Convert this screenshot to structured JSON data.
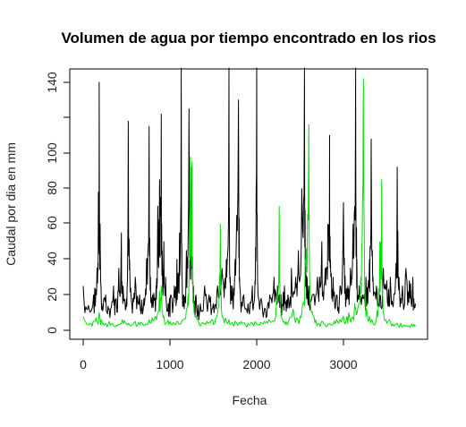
{
  "chart_data": {
    "type": "line",
    "title": "Volumen de agua por tiempo encontrado en los rios",
    "xlabel": "Fecha",
    "ylabel": "Caudal por dia en mm",
    "xlim": [
      0,
      3850
    ],
    "ylim": [
      0,
      145
    ],
    "x_ticks": [
      "0",
      "1000",
      "2000",
      "3000"
    ],
    "y_ticks": [
      "0",
      "20",
      "40",
      "60",
      "80",
      "100",
      "140"
    ],
    "grid": false,
    "legend": "none",
    "series": [
      {
        "color": "#000000",
        "points": [
          [
            0,
            25
          ],
          [
            60,
            14
          ],
          [
            120,
            20
          ],
          [
            160,
            35
          ],
          [
            175,
            78
          ],
          [
            185,
            140
          ],
          [
            195,
            60
          ],
          [
            215,
            15
          ],
          [
            260,
            20
          ],
          [
            300,
            12
          ],
          [
            350,
            25
          ],
          [
            380,
            18
          ],
          [
            410,
            35
          ],
          [
            440,
            55
          ],
          [
            460,
            25
          ],
          [
            500,
            18
          ],
          [
            520,
            118
          ],
          [
            535,
            40
          ],
          [
            560,
            15
          ],
          [
            600,
            30
          ],
          [
            650,
            20
          ],
          [
            700,
            18
          ],
          [
            730,
            40
          ],
          [
            760,
            115
          ],
          [
            775,
            30
          ],
          [
            800,
            20
          ],
          [
            840,
            25
          ],
          [
            860,
            70
          ],
          [
            880,
            85
          ],
          [
            900,
            122
          ],
          [
            910,
            45
          ],
          [
            930,
            50
          ],
          [
            950,
            30
          ],
          [
            980,
            15
          ],
          [
            1010,
            20
          ],
          [
            1050,
            25
          ],
          [
            1080,
            40
          ],
          [
            1110,
            55
          ],
          [
            1130,
            148
          ],
          [
            1140,
            30
          ],
          [
            1160,
            20
          ],
          [
            1190,
            45
          ],
          [
            1220,
            125
          ],
          [
            1235,
            40
          ],
          [
            1250,
            92
          ],
          [
            1270,
            25
          ],
          [
            1300,
            20
          ],
          [
            1350,
            15
          ],
          [
            1400,
            25
          ],
          [
            1450,
            20
          ],
          [
            1500,
            15
          ],
          [
            1550,
            25
          ],
          [
            1600,
            35
          ],
          [
            1650,
            40
          ],
          [
            1680,
            148
          ],
          [
            1695,
            30
          ],
          [
            1720,
            25
          ],
          [
            1750,
            40
          ],
          [
            1790,
            130
          ],
          [
            1805,
            25
          ],
          [
            1850,
            20
          ],
          [
            1900,
            15
          ],
          [
            1950,
            25
          ],
          [
            1980,
            28
          ],
          [
            2000,
            148
          ],
          [
            2015,
            20
          ],
          [
            2050,
            18
          ],
          [
            2100,
            12
          ],
          [
            2150,
            20
          ],
          [
            2200,
            30
          ],
          [
            2240,
            25
          ],
          [
            2280,
            20
          ],
          [
            2320,
            25
          ],
          [
            2360,
            20
          ],
          [
            2400,
            35
          ],
          [
            2450,
            30
          ],
          [
            2480,
            45
          ],
          [
            2520,
            80
          ],
          [
            2550,
            148
          ],
          [
            2565,
            40
          ],
          [
            2580,
            30
          ],
          [
            2600,
            25
          ],
          [
            2640,
            20
          ],
          [
            2700,
            30
          ],
          [
            2750,
            50
          ],
          [
            2790,
            35
          ],
          [
            2820,
            60
          ],
          [
            2840,
            110
          ],
          [
            2850,
            40
          ],
          [
            2880,
            30
          ],
          [
            2920,
            20
          ],
          [
            2960,
            25
          ],
          [
            3000,
            72
          ],
          [
            3020,
            30
          ],
          [
            3050,
            25
          ],
          [
            3080,
            35
          ],
          [
            3110,
            60
          ],
          [
            3140,
            148
          ],
          [
            3155,
            40
          ],
          [
            3180,
            25
          ],
          [
            3220,
            20
          ],
          [
            3260,
            30
          ],
          [
            3300,
            40
          ],
          [
            3320,
            108
          ],
          [
            3340,
            30
          ],
          [
            3380,
            25
          ],
          [
            3420,
            20
          ],
          [
            3460,
            35
          ],
          [
            3500,
            28
          ],
          [
            3540,
            30
          ],
          [
            3580,
            20
          ],
          [
            3620,
            92
          ],
          [
            3640,
            30
          ],
          [
            3680,
            25
          ],
          [
            3720,
            35
          ],
          [
            3760,
            28
          ],
          [
            3800,
            30
          ],
          [
            3830,
            15
          ]
        ]
      },
      {
        "color": "#00e000",
        "points": [
          [
            0,
            8
          ],
          [
            80,
            4
          ],
          [
            150,
            7
          ],
          [
            185,
            10
          ],
          [
            230,
            4
          ],
          [
            300,
            5
          ],
          [
            380,
            3
          ],
          [
            450,
            6
          ],
          [
            520,
            4
          ],
          [
            600,
            5
          ],
          [
            680,
            4
          ],
          [
            760,
            6
          ],
          [
            830,
            8
          ],
          [
            880,
            22
          ],
          [
            900,
            25
          ],
          [
            930,
            8
          ],
          [
            1000,
            5
          ],
          [
            1080,
            5
          ],
          [
            1150,
            6
          ],
          [
            1210,
            20
          ],
          [
            1235,
            98
          ],
          [
            1255,
            95
          ],
          [
            1270,
            15
          ],
          [
            1330,
            5
          ],
          [
            1400,
            4
          ],
          [
            1480,
            6
          ],
          [
            1550,
            10
          ],
          [
            1580,
            60
          ],
          [
            1600,
            8
          ],
          [
            1680,
            6
          ],
          [
            1750,
            5
          ],
          [
            1820,
            5
          ],
          [
            1900,
            4
          ],
          [
            1980,
            5
          ],
          [
            2060,
            4
          ],
          [
            2140,
            6
          ],
          [
            2220,
            8
          ],
          [
            2260,
            70
          ],
          [
            2280,
            8
          ],
          [
            2340,
            5
          ],
          [
            2420,
            12
          ],
          [
            2500,
            8
          ],
          [
            2560,
            40
          ],
          [
            2600,
            116
          ],
          [
            2620,
            15
          ],
          [
            2680,
            6
          ],
          [
            2760,
            5
          ],
          [
            2840,
            4
          ],
          [
            2920,
            6
          ],
          [
            3000,
            8
          ],
          [
            3060,
            10
          ],
          [
            3130,
            15
          ],
          [
            3200,
            30
          ],
          [
            3230,
            142
          ],
          [
            3250,
            20
          ],
          [
            3300,
            8
          ],
          [
            3380,
            6
          ],
          [
            3420,
            50
          ],
          [
            3440,
            85
          ],
          [
            3460,
            10
          ],
          [
            3540,
            5
          ],
          [
            3620,
            4
          ],
          [
            3700,
            3
          ],
          [
            3780,
            3
          ],
          [
            3830,
            2
          ]
        ]
      }
    ]
  }
}
